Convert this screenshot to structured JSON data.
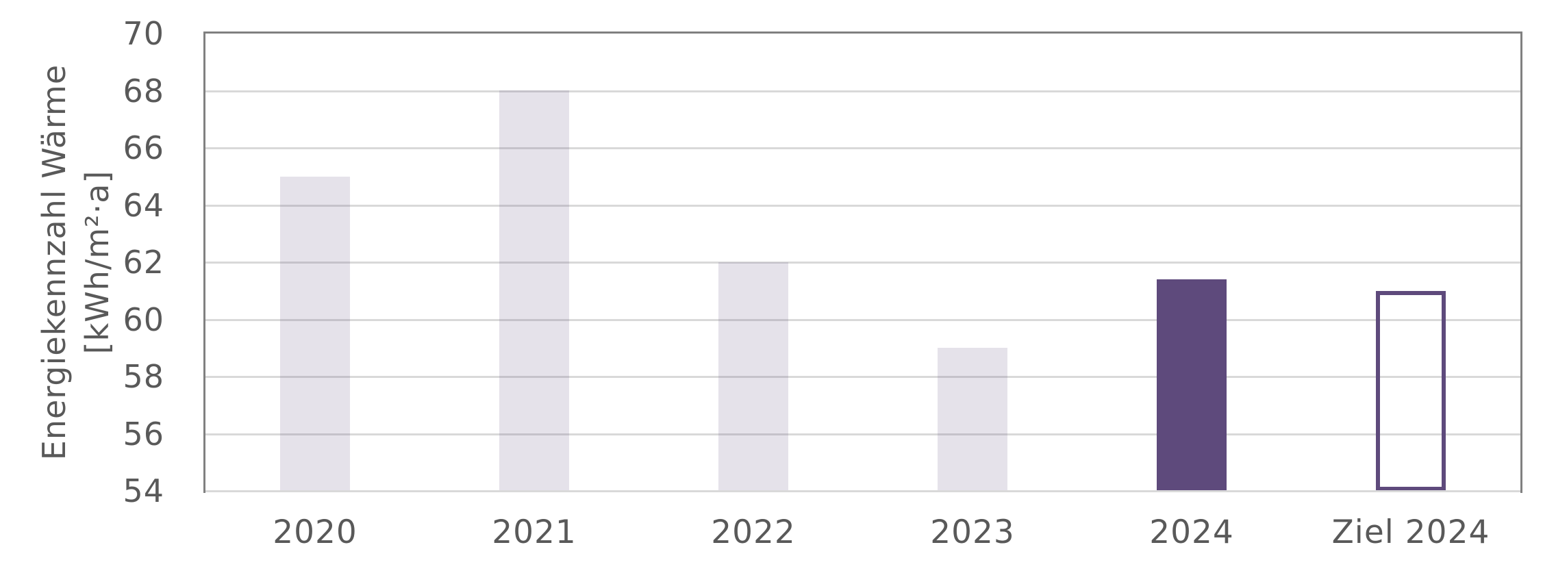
{
  "chart_data": {
    "type": "bar",
    "title": "",
    "categories": [
      "2020",
      "2021",
      "2022",
      "2023",
      "2024",
      "Ziel 2024"
    ],
    "values": [
      65,
      68,
      62,
      59,
      61.4,
      61
    ],
    "bars": [
      {
        "category": "2020",
        "value": 65,
        "style": "light"
      },
      {
        "category": "2021",
        "value": 68,
        "style": "light"
      },
      {
        "category": "2022",
        "value": 62,
        "style": "light"
      },
      {
        "category": "2023",
        "value": 59,
        "style": "light"
      },
      {
        "category": "2024",
        "value": 61.4,
        "style": "dark"
      },
      {
        "category": "Ziel 2024",
        "value": 61,
        "style": "outline"
      }
    ],
    "xlabel": "",
    "ylabel": "Energiekennzahl Wärme [kWh/m²·a]",
    "ylabel_line1": "Energiekennzahl Wärme",
    "ylabel_line2": "[kWh/m²·a]",
    "ylim": [
      54,
      70
    ],
    "ytick_step": 2,
    "yticks": [
      70,
      68,
      66,
      64,
      62,
      60,
      58,
      56,
      54
    ],
    "grid": true,
    "legend_position": "none",
    "colors": {
      "bar_light": "rgba(94,74,124,0.16)",
      "bar_dark": "#5E4A7C",
      "bar_outline_stroke": "#5E4A7C",
      "gridline": "#D9D9D9",
      "plot_border": "#808080",
      "x_axis_line": "#D9D9D9",
      "text": "#595959"
    }
  }
}
